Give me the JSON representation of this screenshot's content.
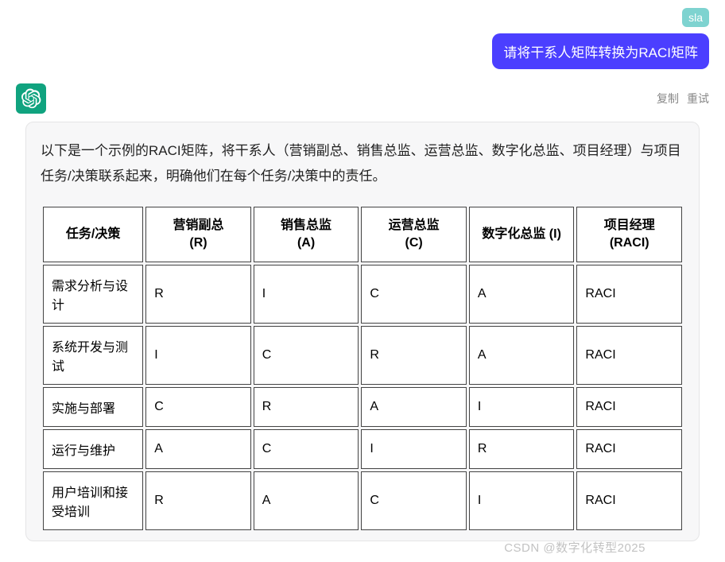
{
  "user": {
    "badge": "sla",
    "message": "请将干系人矩阵转换为RACI矩阵"
  },
  "actions": {
    "copy": "复制",
    "retry": "重试"
  },
  "intro": "以下是一个示例的RACI矩阵，将干系人（营销副总、销售总监、运营总监、数字化总监、项目经理）与项目任务/决策联系起来，明确他们在每个任务/决策中的责任。",
  "table": {
    "headers": [
      "任务/决策",
      "营销副总\n(R)",
      "销售总监\n(A)",
      "运营总监\n(C)",
      "数字化总监 (I)",
      "项目经理\n(RACI)"
    ],
    "rows": [
      [
        "需求分析与设计",
        "R",
        "I",
        "C",
        "A",
        "RACI"
      ],
      [
        "系统开发与测试",
        "I",
        "C",
        "R",
        "A",
        "RACI"
      ],
      [
        "实施与部署",
        "C",
        "R",
        "A",
        "I",
        "RACI"
      ],
      [
        "运行与维护",
        "A",
        "C",
        "I",
        "R",
        "RACI"
      ],
      [
        "用户培训和接受培训",
        "R",
        "A",
        "C",
        "I",
        "RACI"
      ]
    ]
  },
  "watermark": "CSDN @数字化转型2025",
  "colors": {
    "user_bubble": "#4b3fff",
    "badge_bg": "#7ed3d0",
    "gpt_bg": "#10a37f",
    "card_bg": "#f7f7f8",
    "border": "#444444"
  }
}
